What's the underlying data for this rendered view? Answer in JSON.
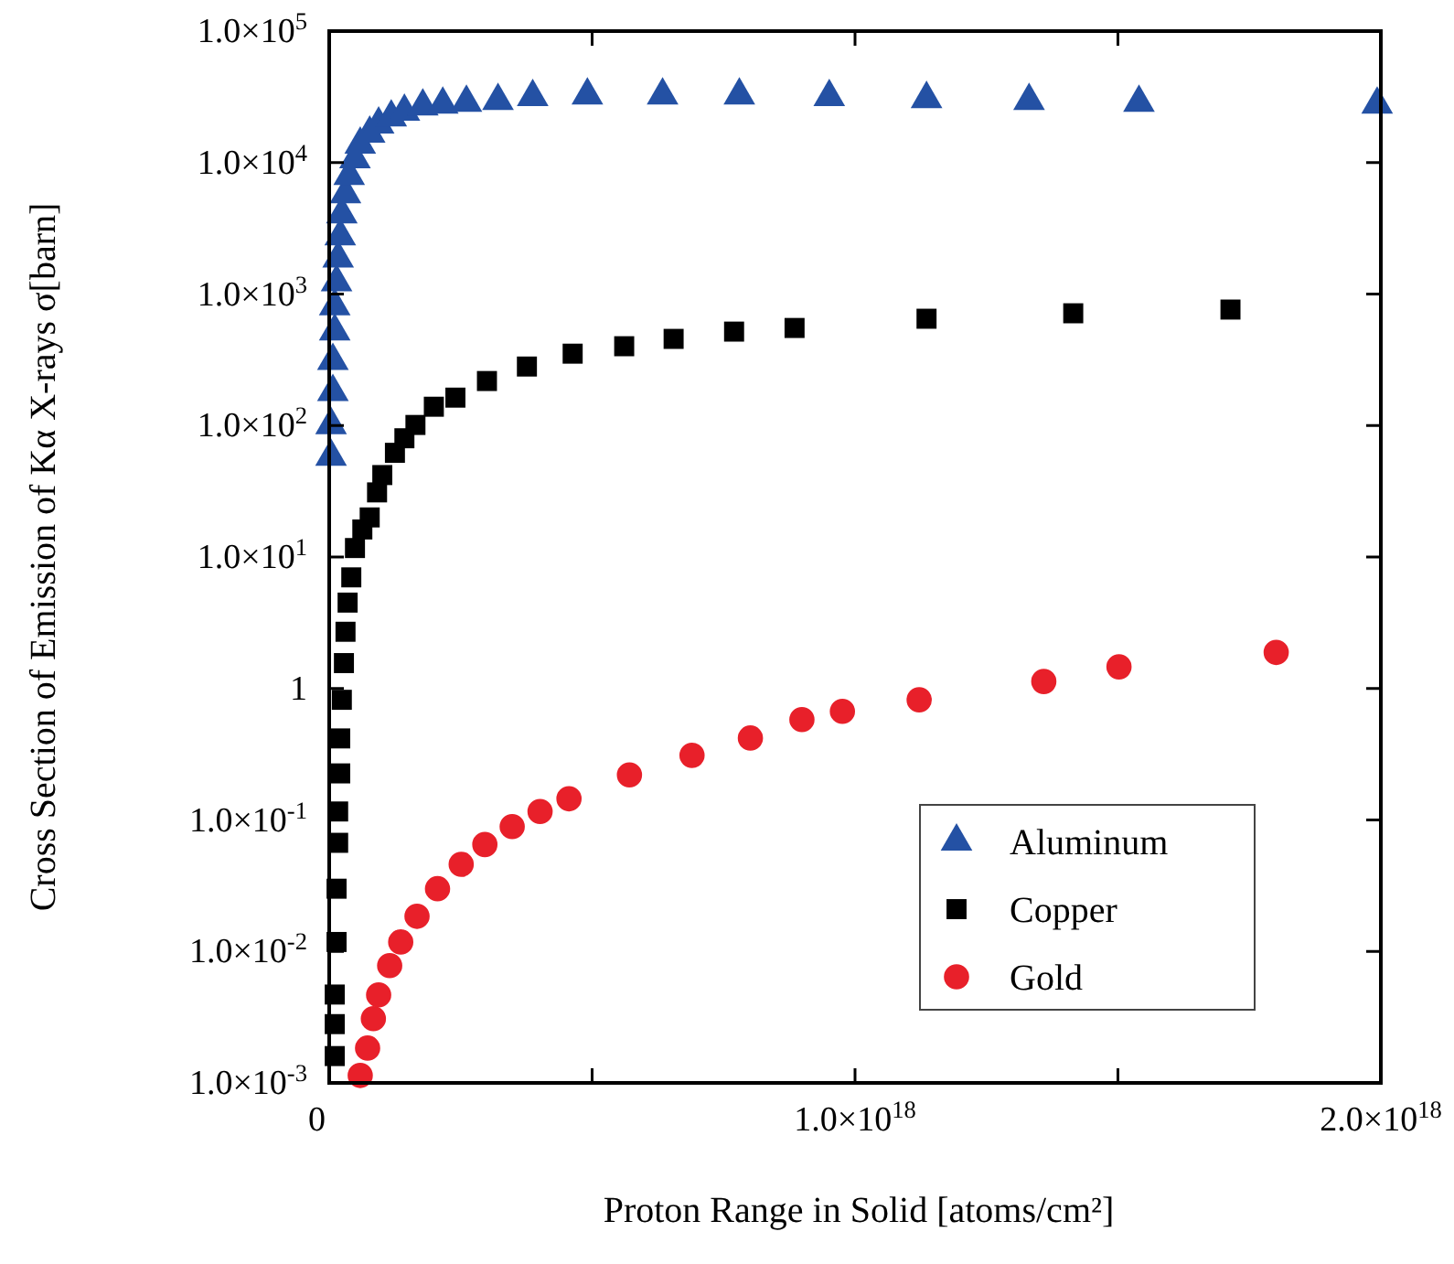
{
  "chart_data": {
    "type": "scatter",
    "xlabel": "Proton Range in Solid  [atoms/cm²]",
    "ylabel": "Cross Section of Emission of Kα X-rays σ[barn]",
    "log": "y",
    "xlim": [
      0,
      2e+18
    ],
    "ylim": [
      0.001,
      100000
    ],
    "xticks": [
      0,
      {
        "value": 5e+17,
        "label": null
      },
      {
        "value": 1e+18,
        "label": "1.0×10$^{18}$"
      },
      {
        "value": 1.5e+18,
        "label": null
      },
      {
        "value": 2e+18,
        "label": "2.0×10$^{18}$"
      }
    ],
    "yticks": [
      {
        "value": 0.001,
        "label": "1.0×10$^{-3}$"
      },
      {
        "value": 0.01,
        "label": "1.0×10$^{-2}$"
      },
      {
        "value": 0.1,
        "label": "1.0×10$^{-1}$"
      },
      1,
      {
        "value": 10,
        "label": "1.0×10$^{1}$"
      },
      {
        "value": 100,
        "label": "1.0×10$^{2}$"
      },
      {
        "value": 1000,
        "label": "1.0×10$^{3}$"
      },
      {
        "value": 10000,
        "label": "1.0×10$^{4}$"
      },
      {
        "value": 100000,
        "label": "1.0×10$^{5}$"
      }
    ],
    "legend": "bottom right",
    "grid": false,
    "series": [
      {
        "name": "Aluminum",
        "color": "#2451a4",
        "marker": "triangle",
        "x": [
          3500000000000000.0,
          3500000000000000.0,
          7000000000000000.0,
          7000000000000000.0,
          1.05e+16,
          1.05e+16,
          1.4e+16,
          1.7e+16,
          2.1e+16,
          2.4e+16,
          3.1e+16,
          3.8e+16,
          4.9e+16,
          5.9e+16,
          7.7e+16,
          9.4e+16,
          1.18e+17,
          1.43e+17,
          1.78e+17,
          2.16e+17,
          2.61e+17,
          3.21e+17,
          3.87e+17,
          4.91e+17,
          6.34e+17,
          7.8e+17,
          9.51e+17,
          1.136e+18,
          1.331e+18,
          1.54e+18,
          1.993e+18
        ],
        "values": [
          58,
          101,
          180,
          310,
          520,
          810,
          1230,
          1870,
          2750,
          4040,
          5750,
          7930,
          10600,
          13700,
          16600,
          19500,
          22100,
          24400,
          26800,
          27700,
          28600,
          29500,
          31500,
          32500,
          32500,
          32500,
          31500,
          30500,
          29500,
          28600,
          27700
        ]
      },
      {
        "name": "Copper",
        "color": "#000000",
        "marker": "square",
        "x": [
          1.05e+16,
          1.05e+16,
          1.05e+16,
          1.4e+16,
          1.4e+16,
          1.7e+16,
          1.7e+16,
          2.1e+16,
          2.1e+16,
          2.4e+16,
          2.8e+16,
          3.1e+16,
          3.5e+16,
          4.2e+16,
          4.9e+16,
          6.3e+16,
          7.7e+16,
          9.1e+16,
          1.01e+17,
          1.25e+17,
          1.43e+17,
          1.64e+17,
          1.99e+17,
          2.4e+17,
          3e+17,
          3.76e+17,
          4.63e+17,
          5.61e+17,
          6.55e+17,
          7.7e+17,
          8.85e+17,
          1.136e+18,
          1.415e+18,
          1.714e+18
        ],
        "values": [
          0.0016,
          0.0028,
          0.0047,
          0.0118,
          0.03,
          0.067,
          0.116,
          0.226,
          0.417,
          0.82,
          1.56,
          2.7,
          4.5,
          7,
          11.7,
          16.2,
          20,
          31,
          42,
          62,
          80,
          101,
          139,
          163,
          218,
          281,
          352,
          401,
          456,
          518,
          552,
          649,
          714,
          762
        ]
      },
      {
        "name": "Gold",
        "color": "#e8202a",
        "marker": "circle",
        "x": [
          5.9e+16,
          7.3e+16,
          8.4e+16,
          9.4e+16,
          1.15e+17,
          1.36e+17,
          1.67e+17,
          2.06e+17,
          2.51e+17,
          2.96e+17,
          3.48e+17,
          4.01e+17,
          4.56e+17,
          5.71e+17,
          6.9e+17,
          8.01e+17,
          8.99e+17,
          9.76e+17,
          1.122e+18,
          1.359e+18,
          1.502e+18,
          1.801e+18
        ],
        "values": [
          0.00114,
          0.00184,
          0.00308,
          0.00467,
          0.0078,
          0.0118,
          0.0185,
          0.03,
          0.046,
          0.065,
          0.089,
          0.116,
          0.145,
          0.22,
          0.31,
          0.42,
          0.58,
          0.67,
          0.82,
          1.13,
          1.46,
          1.88
        ]
      }
    ]
  }
}
